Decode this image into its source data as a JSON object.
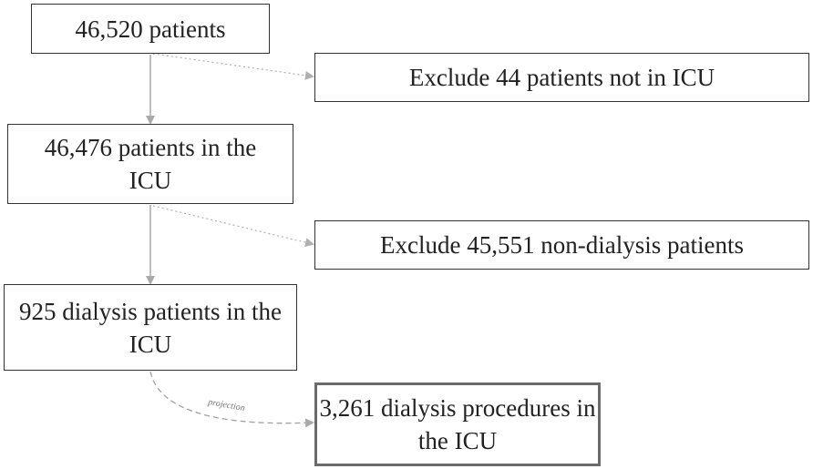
{
  "nodes": {
    "n1": "46,520 patients",
    "n2": "46,476 patients in the ICU",
    "n3": "925 dialysis patients in the ICU",
    "n4": "3,261 dialysis procedures in the ICU",
    "e1": "Exclude 44 patients not in ICU",
    "e2": "Exclude 45,551 non-dialysis patients"
  },
  "edge_labels": {
    "projection": "projection"
  },
  "colors": {
    "box_border": "#333333",
    "main_arrow": "#a9a9a9",
    "dotted_arrow": "#b0b0b0",
    "projection_arrow": "#a0a0a0"
  }
}
